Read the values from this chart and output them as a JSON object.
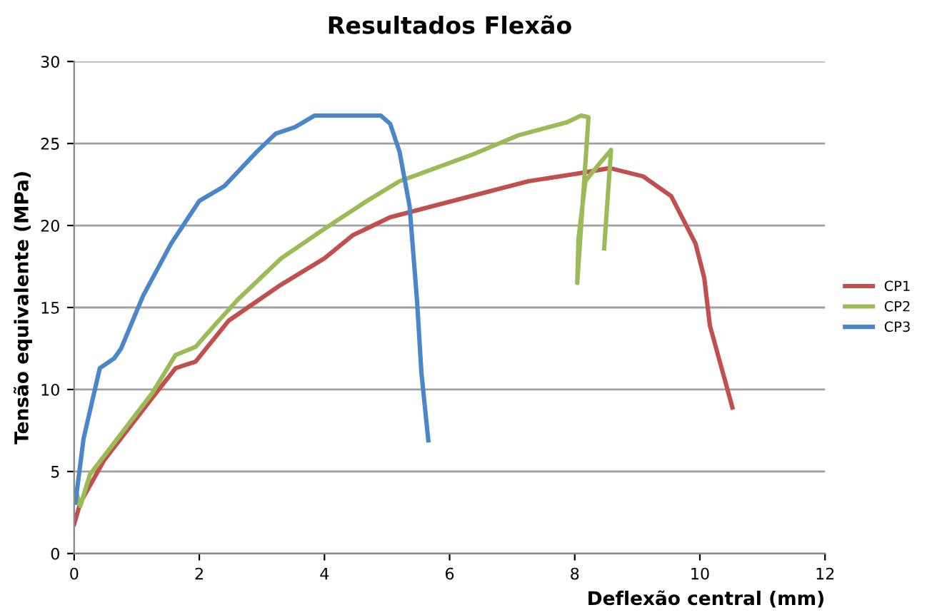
{
  "chart_data": {
    "type": "line",
    "title": "Resultados Flexão",
    "xlabel": "Deflexão central (mm)",
    "ylabel": "Tensão equivalente (MPa)",
    "xlim": [
      0,
      12
    ],
    "xticks": [
      0,
      2,
      4,
      6,
      8,
      10,
      12
    ],
    "ylim": [
      0,
      30
    ],
    "yticks": [
      0,
      5,
      10,
      15,
      20,
      25,
      30
    ],
    "grid": "y",
    "legend": "right",
    "marker": "none",
    "line_style": "solid",
    "series": [
      {
        "name": "CP1",
        "color": "#c0504d",
        "x": [
          0,
          0.1,
          0.48,
          1.25,
          1.62,
          1.94,
          2.47,
          3.31,
          4.0,
          4.45,
          5.05,
          6.35,
          7.26,
          8.1,
          8.56,
          9.09,
          9.54,
          9.93,
          10.07,
          10.16,
          10.52
        ],
        "values": [
          1.8,
          3.1,
          5.7,
          9.5,
          11.3,
          11.7,
          14.2,
          16.4,
          18.0,
          19.4,
          20.5,
          21.8,
          22.7,
          23.2,
          23.5,
          23.0,
          21.8,
          18.9,
          16.8,
          13.9,
          8.9
        ]
      },
      {
        "name": "CP2",
        "color": "#9bbb59",
        "x": [
          0.02,
          0.1,
          0.25,
          0.71,
          1.25,
          1.62,
          1.94,
          2.24,
          2.62,
          3.31,
          4.0,
          4.68,
          5.2,
          6.35,
          7.1,
          7.88,
          8.1,
          8.22,
          8.04,
          8.06,
          8.17,
          8.4,
          8.58,
          8.47
        ],
        "values": [
          3.9,
          2.9,
          4.8,
          7.1,
          9.8,
          12.1,
          12.6,
          13.9,
          15.5,
          18.0,
          19.8,
          21.5,
          22.7,
          24.3,
          25.5,
          26.3,
          26.7,
          26.6,
          16.5,
          19.2,
          22.7,
          23.8,
          24.6,
          18.6
        ]
      },
      {
        "name": "CP3",
        "color": "#4a86c8",
        "x": [
          0.02,
          0.15,
          0.41,
          0.64,
          0.75,
          1.1,
          1.55,
          2.0,
          2.4,
          2.92,
          3.22,
          3.53,
          3.84,
          4.9,
          5.05,
          5.2,
          5.36,
          5.48,
          5.55,
          5.66
        ],
        "values": [
          3.1,
          7.0,
          11.3,
          11.9,
          12.5,
          15.7,
          18.9,
          21.5,
          22.4,
          24.5,
          25.6,
          26.0,
          26.7,
          26.7,
          26.2,
          24.5,
          21.2,
          15.4,
          11.0,
          6.9
        ]
      }
    ]
  }
}
